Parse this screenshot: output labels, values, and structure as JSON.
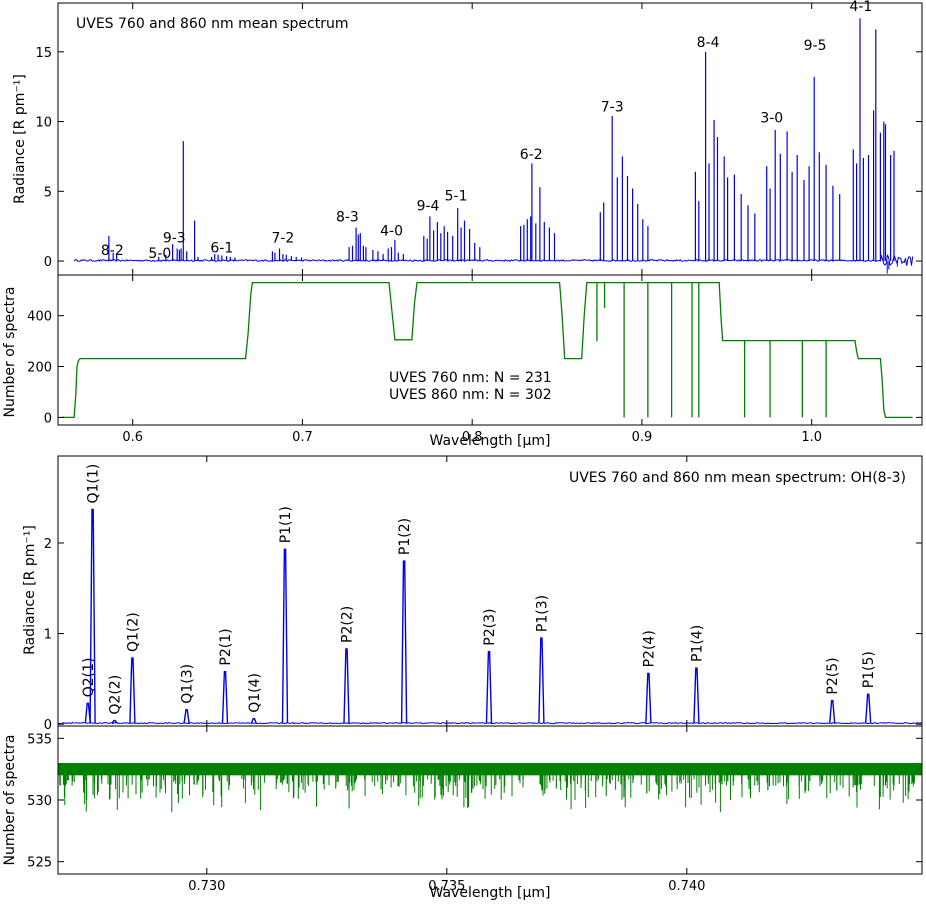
{
  "chart_data": [
    {
      "id": "p1",
      "type": "line",
      "annotation": "UVES 760 and 860 nm mean spectrum",
      "ylabel": "Radiance [R pm⁻¹]",
      "xlabel": "",
      "xlim": [
        0.556,
        1.065
      ],
      "ylim": [
        -1.0,
        18.5
      ],
      "xticks": [
        0.6,
        0.7,
        0.8,
        0.9,
        1.0
      ],
      "yticks": [
        0,
        5,
        10,
        15
      ],
      "show_xticklabels": false,
      "color": "#0000ee",
      "lines": [
        [
          0.586,
          1.8
        ],
        [
          0.5885,
          0.6
        ],
        [
          0.5905,
          0.5
        ],
        [
          0.6153,
          0.3
        ],
        [
          0.6195,
          0.45
        ],
        [
          0.6235,
          1.2
        ],
        [
          0.6262,
          0.9
        ],
        [
          0.6275,
          0.8
        ],
        [
          0.6285,
          0.9
        ],
        [
          0.6298,
          8.6
        ],
        [
          0.6318,
          0.7
        ],
        [
          0.6365,
          2.9
        ],
        [
          0.6385,
          0.3
        ],
        [
          0.6465,
          0.3
        ],
        [
          0.6483,
          0.5
        ],
        [
          0.6503,
          0.45
        ],
        [
          0.6525,
          0.4
        ],
        [
          0.6553,
          0.35
        ],
        [
          0.6575,
          0.3
        ],
        [
          0.6603,
          0.25
        ],
        [
          0.6823,
          0.7
        ],
        [
          0.6838,
          0.6
        ],
        [
          0.6865,
          0.9
        ],
        [
          0.6885,
          0.5
        ],
        [
          0.6905,
          0.45
        ],
        [
          0.6935,
          0.35
        ],
        [
          0.6963,
          0.3
        ],
        [
          0.6995,
          0.25
        ],
        [
          0.7275,
          1.0
        ],
        [
          0.7295,
          1.1
        ],
        [
          0.7316,
          2.4
        ],
        [
          0.7329,
          1.9
        ],
        [
          0.7341,
          2.0
        ],
        [
          0.7359,
          1.1
        ],
        [
          0.7374,
          1.0
        ],
        [
          0.7415,
          0.8
        ],
        [
          0.7445,
          0.7
        ],
        [
          0.7475,
          0.5
        ],
        [
          0.7505,
          0.9
        ],
        [
          0.7525,
          1.0
        ],
        [
          0.7545,
          1.5
        ],
        [
          0.7565,
          0.6
        ],
        [
          0.7595,
          0.5
        ],
        [
          0.7715,
          1.8
        ],
        [
          0.7735,
          1.6
        ],
        [
          0.7751,
          3.2
        ],
        [
          0.7773,
          2.2
        ],
        [
          0.7795,
          2.8
        ],
        [
          0.7815,
          2.0
        ],
        [
          0.7835,
          2.5
        ],
        [
          0.7855,
          2.1
        ],
        [
          0.7885,
          1.8
        ],
        [
          0.7915,
          3.8
        ],
        [
          0.7935,
          2.4
        ],
        [
          0.7955,
          2.9
        ],
        [
          0.7985,
          2.3
        ],
        [
          0.8015,
          1.3
        ],
        [
          0.8045,
          1.0
        ],
        [
          0.8285,
          2.5
        ],
        [
          0.8305,
          2.6
        ],
        [
          0.8325,
          3.0
        ],
        [
          0.8345,
          3.2
        ],
        [
          0.8352,
          7.0
        ],
        [
          0.8375,
          2.7
        ],
        [
          0.8399,
          5.3
        ],
        [
          0.8425,
          2.8
        ],
        [
          0.8455,
          2.4
        ],
        [
          0.8485,
          2.0
        ],
        [
          0.8755,
          3.5
        ],
        [
          0.8775,
          4.2
        ],
        [
          0.8825,
          10.4
        ],
        [
          0.8855,
          6.0
        ],
        [
          0.8885,
          7.5
        ],
        [
          0.8915,
          6.1
        ],
        [
          0.8945,
          5.2
        ],
        [
          0.8975,
          4.1
        ],
        [
          0.9005,
          3.0
        ],
        [
          0.9035,
          2.5
        ],
        [
          0.9315,
          6.4
        ],
        [
          0.9335,
          4.3
        ],
        [
          0.9375,
          15.0
        ],
        [
          0.9395,
          7.0
        ],
        [
          0.9425,
          10.1
        ],
        [
          0.9445,
          8.9
        ],
        [
          0.9485,
          7.5
        ],
        [
          0.9505,
          6.0
        ],
        [
          0.9545,
          6.2
        ],
        [
          0.9585,
          4.8
        ],
        [
          0.9625,
          4.0
        ],
        [
          0.9665,
          3.4
        ],
        [
          0.9735,
          6.8
        ],
        [
          0.9755,
          5.2
        ],
        [
          0.9785,
          9.4
        ],
        [
          0.9815,
          7.7
        ],
        [
          0.9855,
          9.3
        ],
        [
          0.9885,
          6.4
        ],
        [
          0.9915,
          7.6
        ],
        [
          0.9955,
          5.8
        ],
        [
          0.9985,
          6.8
        ],
        [
          1.0015,
          13.2
        ],
        [
          1.0045,
          7.8
        ],
        [
          1.0085,
          6.9
        ],
        [
          1.0125,
          5.4
        ],
        [
          1.0165,
          4.8
        ],
        [
          1.0245,
          8.0
        ],
        [
          1.0265,
          7.0
        ],
        [
          1.0285,
          17.4
        ],
        [
          1.0305,
          7.4
        ],
        [
          1.0335,
          7.6
        ],
        [
          1.0365,
          10.8
        ],
        [
          1.0378,
          16.6
        ],
        [
          1.0405,
          9.2
        ],
        [
          1.0425,
          10.0
        ],
        [
          1.0435,
          9.8
        ],
        [
          1.0465,
          7.6
        ],
        [
          1.0485,
          7.9
        ]
      ],
      "band_labels": [
        {
          "text": "8-2",
          "x": 0.588,
          "y": 0.0
        },
        {
          "text": "5-0",
          "x": 0.616,
          "y": -0.2
        },
        {
          "text": "9-3",
          "x": 0.6245,
          "y": 0.9
        },
        {
          "text": "6-1",
          "x": 0.6525,
          "y": 0.2
        },
        {
          "text": "7-2",
          "x": 0.6885,
          "y": 0.9
        },
        {
          "text": "8-3",
          "x": 0.7265,
          "y": 2.4
        },
        {
          "text": "4-0",
          "x": 0.7525,
          "y": 1.4
        },
        {
          "text": "9-4",
          "x": 0.774,
          "y": 3.2
        },
        {
          "text": "5-1",
          "x": 0.7905,
          "y": 3.9
        },
        {
          "text": "6-2",
          "x": 0.8348,
          "y": 6.9
        },
        {
          "text": "7-3",
          "x": 0.8825,
          "y": 10.3
        },
        {
          "text": "8-4",
          "x": 0.939,
          "y": 14.9
        },
        {
          "text": "3-0",
          "x": 0.9765,
          "y": 9.5
        },
        {
          "text": "9-5",
          "x": 1.002,
          "y": 14.7
        },
        {
          "text": "4-1",
          "x": 1.029,
          "y": 17.5
        }
      ]
    },
    {
      "id": "p2",
      "type": "line",
      "ylabel": "Number of spectra",
      "xlabel": "Wavelength [µm]",
      "xlim": [
        0.556,
        1.065
      ],
      "ylim": [
        -30,
        560
      ],
      "xticks": [
        0.6,
        0.7,
        0.8,
        0.9,
        1.0
      ],
      "xticklabels": [
        "0.6",
        "0.7",
        "0.8",
        "0.9",
        "1.0"
      ],
      "yticks": [
        0,
        200,
        400
      ],
      "color": "#008000",
      "legend_lines": [
        "UVES 760 nm: N = 231",
        "UVES 860 nm: N = 302"
      ],
      "step_points": [
        [
          0.5655,
          0
        ],
        [
          0.5665,
          90
        ],
        [
          0.5672,
          200
        ],
        [
          0.568,
          222
        ],
        [
          0.569,
          231
        ],
        [
          0.6665,
          231
        ],
        [
          0.668,
          330
        ],
        [
          0.6695,
          480
        ],
        [
          0.6705,
          530
        ],
        [
          0.751,
          530
        ],
        [
          0.753,
          400
        ],
        [
          0.7545,
          305
        ],
        [
          0.7645,
          305
        ],
        [
          0.766,
          450
        ],
        [
          0.7675,
          530
        ],
        [
          0.8515,
          530
        ],
        [
          0.853,
          400
        ],
        [
          0.8545,
          231
        ],
        [
          0.8645,
          231
        ],
        [
          0.866,
          400
        ],
        [
          0.8675,
          530
        ],
        [
          0.9455,
          530
        ],
        [
          0.9465,
          400
        ],
        [
          0.9475,
          302
        ],
        [
          1.0255,
          302
        ],
        [
          1.0265,
          260
        ],
        [
          1.0275,
          231
        ],
        [
          1.0405,
          231
        ],
        [
          1.0415,
          150
        ],
        [
          1.0425,
          30
        ],
        [
          1.0435,
          0
        ]
      ],
      "drops": [
        {
          "x": 0.8735,
          "y": 300
        },
        {
          "x": 0.878,
          "y": 430
        },
        {
          "x": 0.8895,
          "y": 0
        },
        {
          "x": 0.9035,
          "y": 0
        },
        {
          "x": 0.9175,
          "y": 0
        },
        {
          "x": 0.9295,
          "y": 0
        },
        {
          "x": 0.9335,
          "y": 0
        },
        {
          "x": 0.9605,
          "y": 0
        },
        {
          "x": 0.9755,
          "y": 0
        },
        {
          "x": 0.9945,
          "y": 0
        },
        {
          "x": 1.0085,
          "y": 0
        }
      ]
    },
    {
      "id": "p3",
      "type": "line",
      "annotation": "UVES 760 and 860 nm mean spectrum: OH(8-3)",
      "ylabel": "Radiance [R pm⁻¹]",
      "xlabel": "",
      "xlim": [
        0.7269,
        0.7449
      ],
      "ylim": [
        -0.02,
        2.96
      ],
      "xticks": [
        0.73,
        0.735,
        0.74
      ],
      "yticks": [
        0,
        1,
        2
      ],
      "show_xticklabels": false,
      "color": "#0000ee",
      "lines": [
        {
          "label": "Q2(1)",
          "x": 0.72752,
          "y": 0.23
        },
        {
          "label": "Q1(1)",
          "x": 0.72762,
          "y": 2.37
        },
        {
          "label": "Q2(2)",
          "x": 0.72808,
          "y": 0.04
        },
        {
          "label": "Q1(2)",
          "x": 0.72845,
          "y": 0.73
        },
        {
          "label": "Q1(3)",
          "x": 0.72958,
          "y": 0.16
        },
        {
          "label": "P2(1)",
          "x": 0.73038,
          "y": 0.58
        },
        {
          "label": "Q1(4)",
          "x": 0.73098,
          "y": 0.06
        },
        {
          "label": "P1(1)",
          "x": 0.73163,
          "y": 1.93
        },
        {
          "label": "P2(2)",
          "x": 0.73291,
          "y": 0.83
        },
        {
          "label": "P1(2)",
          "x": 0.73411,
          "y": 1.8
        },
        {
          "label": "P2(3)",
          "x": 0.73588,
          "y": 0.8
        },
        {
          "label": "P1(3)",
          "x": 0.73697,
          "y": 0.95
        },
        {
          "label": "P2(4)",
          "x": 0.7392,
          "y": 0.56
        },
        {
          "label": "P1(4)",
          "x": 0.7402,
          "y": 0.62
        },
        {
          "label": "P2(5)",
          "x": 0.74303,
          "y": 0.26
        },
        {
          "label": "P1(5)",
          "x": 0.74378,
          "y": 0.33
        }
      ]
    },
    {
      "id": "p4",
      "type": "line",
      "ylabel": "Number of spectra",
      "xlabel": "Wavelength [µm]",
      "xlim": [
        0.7269,
        0.7449
      ],
      "ylim": [
        524,
        536
      ],
      "xticks": [
        0.73,
        0.735,
        0.74
      ],
      "xticklabels": [
        "0.730",
        "0.735",
        "0.740"
      ],
      "yticks": [
        525,
        530,
        535
      ],
      "color": "#008000",
      "baseline": 533,
      "min_dip": 529
    }
  ]
}
